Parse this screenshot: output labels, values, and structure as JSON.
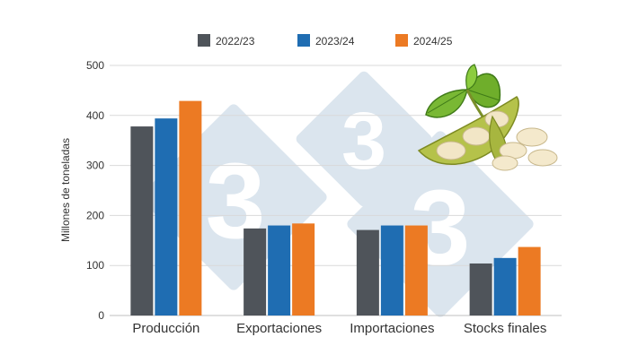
{
  "chart_data": {
    "type": "bar",
    "title": "",
    "xlabel": "",
    "ylabel": "Millones de toneladas",
    "categories": [
      "Producción",
      "Exportaciones",
      "Importaciones",
      "Stocks finales"
    ],
    "series": [
      {
        "name": "2022/23",
        "color": "#4f545a",
        "values": [
          378,
          174,
          171,
          104
        ]
      },
      {
        "name": "2023/24",
        "color": "#1f6db2",
        "values": [
          394,
          180,
          180,
          115
        ]
      },
      {
        "name": "2024/25",
        "color": "#ec7a23",
        "values": [
          429,
          184,
          180,
          137
        ]
      }
    ],
    "yticks": [
      0,
      100,
      200,
      300,
      400,
      500
    ],
    "ylim": [
      0,
      500
    ],
    "grid": true,
    "legend_position": "top-center"
  },
  "watermark": {
    "text": "3",
    "color": "#dbe5ee"
  },
  "illustration": {
    "icon": "soybean-pods-icon"
  }
}
